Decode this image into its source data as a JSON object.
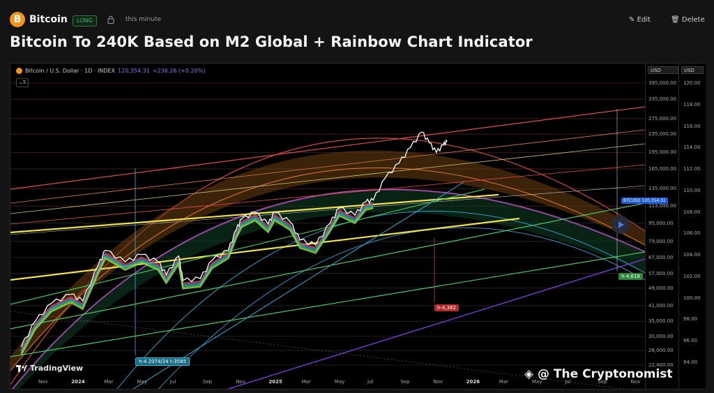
{
  "header": {
    "asset": "Bitcoin",
    "badge": "B",
    "tag": "LONG",
    "timestamp": "this minute",
    "edit_label": "Edit",
    "delete_label": "Delete",
    "edit_icon": "pencil-icon",
    "delete_icon": "trash-icon",
    "lock_icon": "lock-icon"
  },
  "title": "Bitcoin To 240K Based on M2 Global + Rainbow Chart Indicator",
  "chart": {
    "legend_symbol": "Bitcoin / U.S. Dollar · 1D · INDEX",
    "legend_price": "120,354.31",
    "legend_change": "+236.26 (+0.20%)",
    "collapse_label": "5",
    "axis_unit": "USD",
    "axis2_unit": "USD",
    "price_tag": "BTCUSD",
    "price_value": "120,354.31",
    "tag_green": "h-4,618",
    "tag_red": "h-4,382",
    "tag_cyan": "h-4 2074/24 t-3585",
    "watermark": "@ The Cryptonomist",
    "tradingview": "TradingView"
  },
  "chart_data": {
    "type": "line",
    "title": "",
    "y_axis_left_ticks": [
      "395,000.00",
      "335,000.00",
      "275,000.00",
      "235,000.00",
      "195,000.00",
      "165,000.00",
      "135,000.00",
      "113,000.00",
      "95,000.00",
      "79,000.00",
      "67,000.00",
      "57,000.00",
      "49,000.00",
      "41,000.00",
      "35,000.00",
      "30,000.00",
      "26,000.00",
      "22,400.00"
    ],
    "y_axis_right_ticks": [
      "120.00",
      "118.00",
      "116.00",
      "114.00",
      "112.00",
      "110.00",
      "108.00",
      "106.00",
      "104.00",
      "102.00",
      "100.00",
      "98.00",
      "96.00",
      "94.00"
    ],
    "x_ticks": [
      "Nov",
      "2024",
      "Mar",
      "May",
      "Jul",
      "Sep",
      "Nov",
      "2025",
      "Mar",
      "May",
      "Jul",
      "Sep",
      "Nov",
      "2026",
      "Mar",
      "May",
      "Jul",
      "Sep",
      "Nov"
    ],
    "ylim": [
      22400,
      395000
    ],
    "y_scale": "log",
    "series": [
      {
        "values": [
          [
            "2023-10-10",
            27000
          ],
          [
            "2023-11-05",
            35000
          ],
          [
            "2023-12-05",
            42000
          ],
          [
            "2024-01-10",
            46000
          ],
          [
            "2024-02-01",
            43000
          ],
          [
            "2024-03-01",
            62000
          ],
          [
            "2024-03-14",
            72000
          ],
          [
            "2024-04-20",
            64000
          ],
          [
            "2024-05-20",
            69000
          ],
          [
            "2024-06-20",
            64000
          ],
          [
            "2024-07-05",
            56000
          ],
          [
            "2024-07-28",
            68000
          ],
          [
            "2024-08-05",
            53000
          ],
          [
            "2024-09-06",
            54000
          ],
          [
            "2024-09-28",
            65000
          ],
          [
            "2024-10-28",
            72000
          ],
          [
            "2024-11-12",
            89000
          ],
          [
            "2024-11-22",
            99000
          ],
          [
            "2024-12-17",
            106000
          ],
          [
            "2025-01-10",
            94000
          ],
          [
            "2025-01-22",
            106000
          ],
          [
            "2025-02-20",
            96000
          ],
          [
            "2025-03-10",
            80000
          ],
          [
            "2025-04-08",
            76000
          ],
          [
            "2025-05-05",
            95000
          ],
          [
            "2025-05-22",
            111000
          ],
          [
            "2025-06-20",
            103000
          ],
          [
            "2025-07-10",
            118000
          ],
          [
            "2025-07-24",
            120000
          ],
          [
            "2025-08-15",
            150000
          ],
          [
            "2025-09-10",
            175000
          ],
          [
            "2025-10-01",
            205000
          ],
          [
            "2025-10-22",
            240000
          ],
          [
            "2025-11-05",
            215000
          ],
          [
            "2025-11-18",
            195000
          ],
          [
            "2025-12-01",
            210000
          ],
          [
            "2025-12-08",
            218000
          ]
        ]
      }
    ]
  }
}
